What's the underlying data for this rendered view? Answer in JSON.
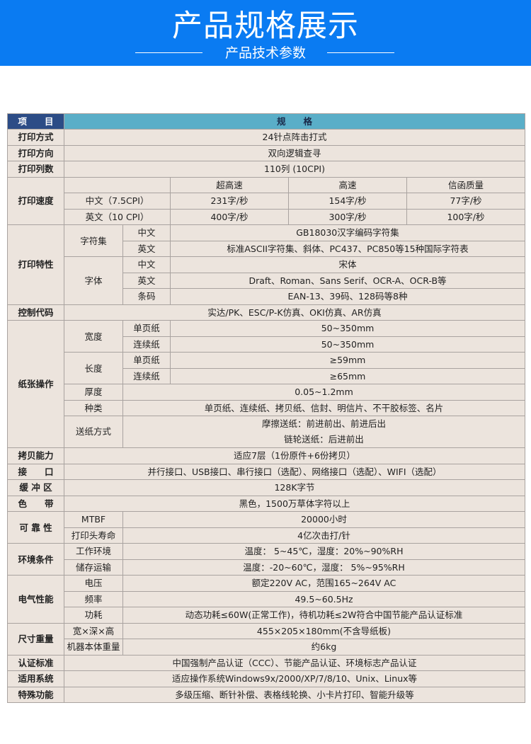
{
  "banner": {
    "title": "产品规格展示",
    "subtitle": "产品技术参数",
    "color": "#0a7bf2"
  },
  "header": {
    "item": "项　　目",
    "spec": "规　　格"
  },
  "print_method": {
    "label": "打印方式",
    "value": "24针点阵击打式"
  },
  "print_direction": {
    "label": "打印方向",
    "value": "双向逻辑查寻"
  },
  "print_columns": {
    "label": "打印列数",
    "value": "110列 (10CPI)"
  },
  "print_speed": {
    "label": "打印速度",
    "modes": [
      "超高速",
      "高速",
      "信函质量"
    ],
    "rows": [
      {
        "label": "中文（7.5CPI）",
        "values": [
          "231字/秒",
          "154字/秒",
          "77字/秒"
        ]
      },
      {
        "label": "英文（10 CPI）",
        "values": [
          "400字/秒",
          "300字/秒",
          "100字/秒"
        ]
      }
    ]
  },
  "print_features": {
    "label": "打印特性",
    "charset": {
      "label": "字符集",
      "zh_label": "中文",
      "zh": "GB18030汉字编码字符集",
      "en_label": "英文",
      "en": "标准ASCII字符集、斜体、PC437、PC850等15种国际字符表"
    },
    "font": {
      "label": "字体",
      "zh_label": "中文",
      "zh": "宋体",
      "en_label": "英文",
      "en": "Draft、Roman、Sans Serif、OCR-A、OCR-B等",
      "bar_label": "条码",
      "bar": "EAN-13、39码、128码等8种"
    }
  },
  "control_code": {
    "label": "控制代码",
    "value": "实达/PK、ESC/P-K仿真、OKI仿真、AR仿真"
  },
  "paper": {
    "label": "纸张操作",
    "width": {
      "label": "宽度",
      "single_label": "单页纸",
      "single": "50~350mm",
      "cont_label": "连续纸",
      "cont": "50~350mm"
    },
    "length": {
      "label": "长度",
      "single_label": "单页纸",
      "single": "≥59mm",
      "cont_label": "连续纸",
      "cont": "≥65mm"
    },
    "thickness": {
      "label": "厚度",
      "value": "0.05~1.2mm"
    },
    "types": {
      "label": "种类",
      "value": "单页纸、连续纸、拷贝纸、信封、明信片、不干胶标签、名片"
    },
    "feed": {
      "label": "送纸方式",
      "line1": "摩擦送纸：前进前出、前进后出",
      "line2": "链轮送纸：后进前出"
    }
  },
  "copy": {
    "label": "拷贝能力",
    "value": "适应7层（1份原件+6份拷贝）"
  },
  "interface": {
    "label": "接　　口",
    "value": "并行接口、USB接口、串行接口（选配）、网络接口（选配）、WIFI（选配）"
  },
  "buffer": {
    "label": "缓 冲 区",
    "value": "128K字节"
  },
  "ribbon": {
    "label": "色　　带",
    "value": "黑色，1500万草体字符以上"
  },
  "reliability": {
    "label": "可 靠 性",
    "mtbf_label": "MTBF",
    "mtbf": "20000小时",
    "head_label": "打印头寿命",
    "head": "4亿次击打/针"
  },
  "environment": {
    "label": "环境条件",
    "work_label": "工作环境",
    "work": "温度： 5~45℃，湿度：20%~90%RH",
    "store_label": "储存运输",
    "store": "温度：-20~60℃，湿度： 5%~95%RH"
  },
  "electrical": {
    "label": "电气性能",
    "voltage_label": "电压",
    "voltage": "额定220V AC，范围165~264V AC",
    "freq_label": "频率",
    "freq": "49.5~60.5Hz",
    "power_label": "功耗",
    "power": "动态功耗≤60W(正常工作)，待机功耗≤2W符合中国节能产品认证标准"
  },
  "size": {
    "label": "尺寸重量",
    "dims_label": "宽×深×高",
    "dims": "455×205×180mm(不含导纸板)",
    "weight_label": "机器本体重量",
    "weight": "约6kg"
  },
  "certification": {
    "label": "认证标准",
    "value": "中国强制产品认证（CCC）、节能产品认证、环境标志产品认证"
  },
  "os": {
    "label": "适用系统",
    "value": "适应操作系统Windows9x/2000/XP/7/8/10、Unix、Linux等"
  },
  "special": {
    "label": "特殊功能",
    "value": "多级压缩、断针补偿、表格线轮换、小卡片打印、智能升级等"
  }
}
